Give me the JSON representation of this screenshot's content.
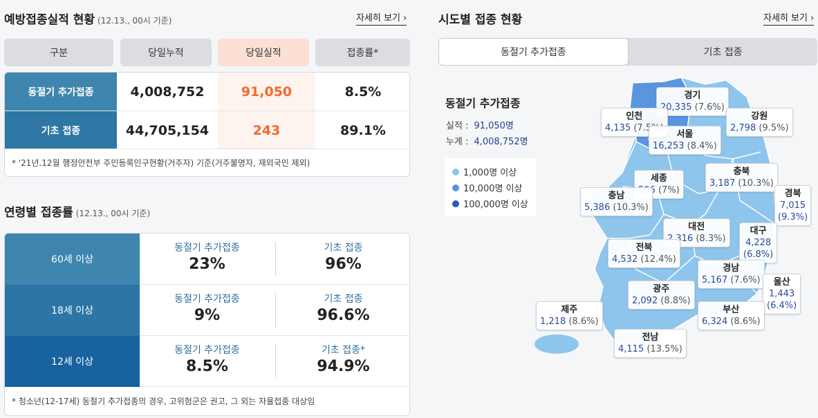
{
  "section1": {
    "title": "예방접종실적 현황",
    "subtitle": "(12.13., 00시 기준)",
    "more_label": "자세히 보기 ›",
    "headers": [
      "구분",
      "당일누적",
      "당일실적",
      "접종률*"
    ],
    "rows": [
      {
        "label": "동절기 추가접종",
        "cumulative": "4,008,752",
        "today": "91,050",
        "rate": "8.5%"
      },
      {
        "label": "기초 접종",
        "cumulative": "44,705,154",
        "today": "243",
        "rate": "89.1%"
      }
    ],
    "note": "* '21년.12월 행정안전부 주민등록인구현황(거주자) 기준(거주불명자, 재외국민 제외)"
  },
  "section2": {
    "title": "연령별 접종률",
    "subtitle": "(12.13., 00시 기준)",
    "rows": [
      {
        "label": "60세 이상",
        "booster_title": "동절기 추가접종",
        "booster_value": "23%",
        "primary_title": "기초 접종",
        "primary_value": "96%"
      },
      {
        "label": "18세 이상",
        "booster_title": "동절기 추가접종",
        "booster_value": "9%",
        "primary_title": "기초 접종",
        "primary_value": "96.6%"
      },
      {
        "label": "12세 이상",
        "booster_title": "동절기 추가접종",
        "booster_value": "8.5%",
        "primary_title": "기초 접종*",
        "primary_value": "94.9%"
      }
    ],
    "note": "* 청소년(12-17세) 동절기 추가접종의 경우, 고위험군은 권고, 그 외는 자율접종 대상임"
  },
  "section3": {
    "title": "시도별 접종 현황",
    "more_label": "자세히 보기 ›",
    "tabs": [
      "동절기 추가접종",
      "기초 접종"
    ],
    "panel_title": "동절기 추가접종",
    "stats": [
      {
        "label": "실적 :",
        "value": "91,050명"
      },
      {
        "label": "누계 :",
        "value": "4,008,752명"
      }
    ],
    "legend": [
      {
        "label": "1,000명 이상",
        "color": "#8ec5ec"
      },
      {
        "label": "10,000명 이상",
        "color": "#5a95e0"
      },
      {
        "label": "100,000명 이상",
        "color": "#2b57c4"
      }
    ],
    "regions": {
      "gyeonggi": {
        "name": "경기",
        "value": "20,335",
        "pct": "(7.6%)"
      },
      "incheon": {
        "name": "인천",
        "value": "4,135",
        "pct": "(7.5%)"
      },
      "seoul": {
        "name": "서울",
        "value": "16,253",
        "pct": "(8.4%)"
      },
      "gangwon": {
        "name": "강원",
        "value": "2,798",
        "pct": "(9.5%)"
      },
      "sejong": {
        "name": "세종",
        "value": "506",
        "pct": "(7%)"
      },
      "chungbuk": {
        "name": "충북",
        "value": "3,187",
        "pct": "(10.3%)"
      },
      "chungnam": {
        "name": "충남",
        "value": "5,386",
        "pct": "(10.3%)"
      },
      "gyeongbuk": {
        "name": "경북",
        "value": "7,015",
        "pct": "(9.3%)"
      },
      "daejeon": {
        "name": "대전",
        "value": "2,316",
        "pct": "(8.3%)"
      },
      "daegu": {
        "name": "대구",
        "value": "4,228",
        "pct": "(6.8%)"
      },
      "jeonbuk": {
        "name": "전북",
        "value": "4,532",
        "pct": "(12.4%)"
      },
      "gyeongnam": {
        "name": "경남",
        "value": "5,167",
        "pct": "(7.6%)"
      },
      "ulsan": {
        "name": "울산",
        "value": "1,443",
        "pct": "(6.4%)"
      },
      "gwangju": {
        "name": "광주",
        "value": "2,092",
        "pct": "(8.8%)"
      },
      "jeju": {
        "name": "제주",
        "value": "1,218",
        "pct": "(8.6%)"
      },
      "busan": {
        "name": "부산",
        "value": "6,324",
        "pct": "(8.6%)"
      },
      "jeonnam": {
        "name": "전남",
        "value": "4,115",
        "pct": "(13.5%)"
      }
    }
  }
}
